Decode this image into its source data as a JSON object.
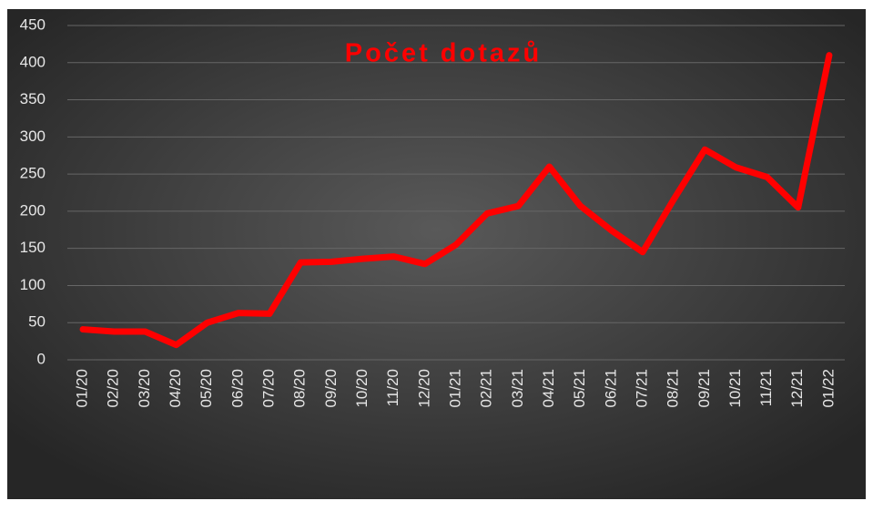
{
  "chart_data": {
    "type": "line",
    "title": "Počet dotazů",
    "categories": [
      "01/20",
      "02/20",
      "03/20",
      "04/20",
      "05/20",
      "06/20",
      "07/20",
      "08/20",
      "09/20",
      "10/20",
      "11/20",
      "12/20",
      "01/21",
      "02/21",
      "03/21",
      "04/21",
      "05/21",
      "06/21",
      "07/21",
      "08/21",
      "09/21",
      "10/21",
      "11/21",
      "12/21",
      "01/22"
    ],
    "series": [
      {
        "color": "#ff0000",
        "values": [
          41,
          38,
          38,
          20,
          50,
          63,
          62,
          131,
          132,
          136,
          139,
          129,
          155,
          197,
          207,
          260,
          207,
          174,
          145,
          216,
          283,
          259,
          246,
          205,
          410
        ]
      }
    ],
    "ylim": [
      0,
      450
    ],
    "yticks": [
      0,
      50,
      100,
      150,
      200,
      250,
      300,
      350,
      400,
      450
    ],
    "grid": true
  }
}
